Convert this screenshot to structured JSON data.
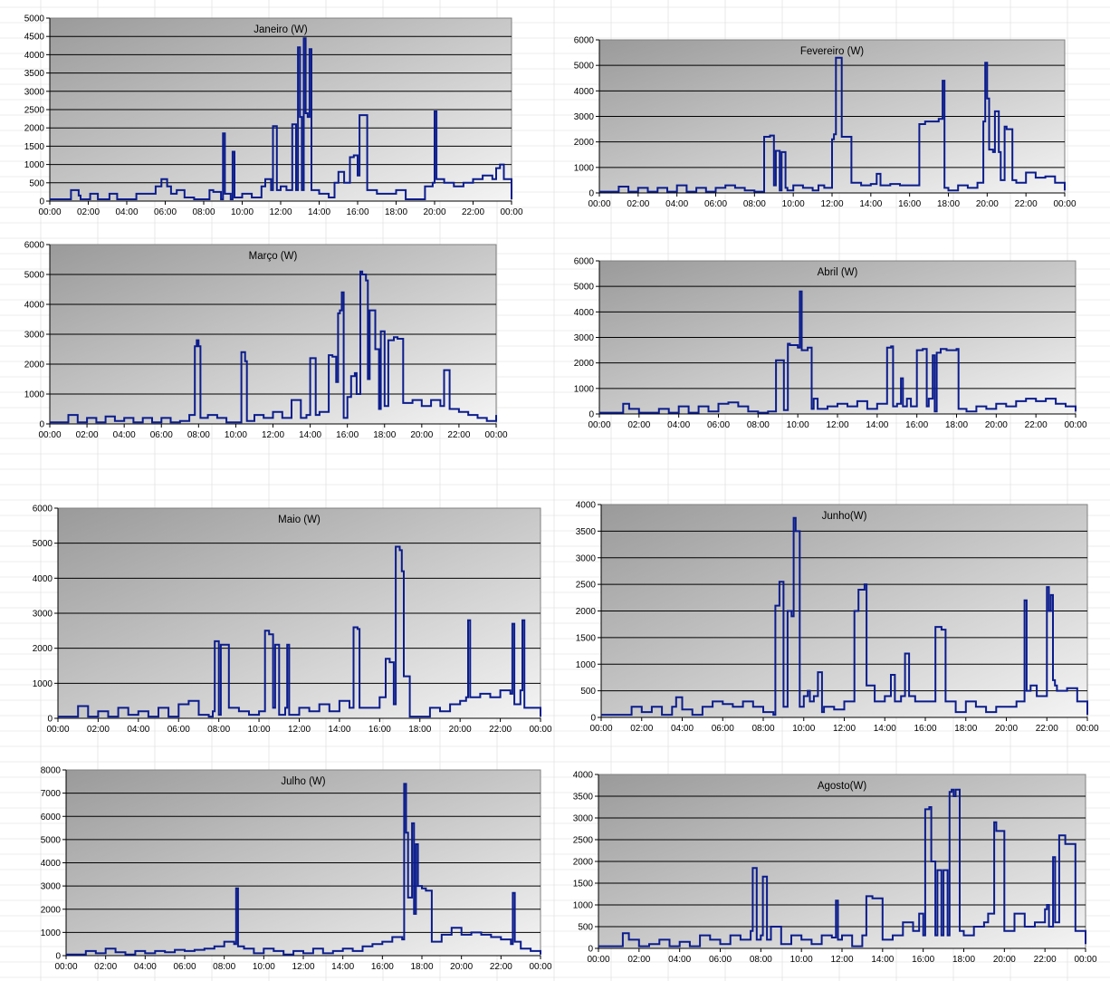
{
  "x_ticks": [
    "00:00",
    "02:00",
    "04:00",
    "06:00",
    "08:00",
    "10:00",
    "12:00",
    "14:00",
    "16:00",
    "18:00",
    "20:00",
    "22:00",
    "00:00"
  ],
  "colors": {
    "line": "#0b1c8c",
    "plot_top": "#9a9a9a",
    "plot_bottom": "#f4f4f4",
    "grid": "#000000",
    "sheet_grid": "#dcdcdc"
  },
  "chart_data": [
    {
      "type": "line",
      "title": "Janeiro (W)",
      "xlim": [
        0,
        24
      ],
      "ylim": [
        0,
        5000
      ],
      "y_ticks": [
        0,
        500,
        1000,
        1500,
        2000,
        2500,
        3000,
        3500,
        4000,
        4500,
        5000
      ],
      "grid": true,
      "x": [
        0,
        1,
        1.1,
        1.5,
        1.6,
        2,
        2.1,
        2.5,
        3,
        3.1,
        3.5,
        4,
        4.5,
        5,
        5.5,
        5.8,
        6.1,
        6.3,
        6.6,
        7,
        7.5,
        8,
        8.3,
        8.5,
        8.9,
        9,
        9.1,
        9.4,
        9.5,
        9.6,
        10,
        10.5,
        11,
        11.2,
        11.5,
        11.6,
        11.8,
        12,
        12.3,
        12.5,
        12.6,
        12.8,
        12.9,
        13,
        13.1,
        13.2,
        13.3,
        13.4,
        13.5,
        13.6,
        14,
        14.5,
        14.8,
        15,
        15.3,
        15.6,
        15.8,
        16,
        16.1,
        16.5,
        17,
        17.5,
        18,
        18.5,
        19,
        19.5,
        19.9,
        20,
        20.1,
        20.5,
        21,
        21.5,
        22,
        22.5,
        23,
        23.2,
        23.4,
        23.6,
        24
      ],
      "values": [
        50,
        50,
        300,
        150,
        50,
        50,
        200,
        50,
        50,
        200,
        50,
        50,
        200,
        200,
        400,
        600,
        400,
        200,
        300,
        100,
        50,
        50,
        300,
        250,
        50,
        1850,
        200,
        50,
        1350,
        100,
        200,
        100,
        400,
        600,
        300,
        2050,
        300,
        400,
        300,
        300,
        2100,
        300,
        4200,
        2300,
        300,
        4450,
        2400,
        2300,
        4150,
        300,
        200,
        100,
        500,
        800,
        500,
        1200,
        1250,
        700,
        2350,
        300,
        200,
        200,
        300,
        50,
        50,
        400,
        500,
        2450,
        600,
        500,
        400,
        500,
        600,
        700,
        600,
        900,
        1000,
        600,
        50
      ]
    },
    {
      "type": "line",
      "title": "Fevereiro (W)",
      "xlim": [
        0,
        24
      ],
      "ylim": [
        0,
        6000
      ],
      "y_ticks": [
        0,
        1000,
        2000,
        3000,
        4000,
        5000,
        6000
      ],
      "grid": true,
      "x": [
        0,
        1,
        1.5,
        2,
        2.5,
        3,
        3.5,
        4,
        4.5,
        5,
        5.5,
        6,
        6.5,
        7,
        7.5,
        8,
        8.5,
        8.8,
        9,
        9.1,
        9.3,
        9.4,
        9.6,
        9.7,
        10,
        10.5,
        11,
        11.3,
        11.6,
        12,
        12.1,
        12.2,
        12.5,
        13,
        13.5,
        14,
        14.3,
        14.5,
        15,
        15.5,
        16,
        16.5,
        16.8,
        17.5,
        17.7,
        17.8,
        18,
        18.5,
        19,
        19.5,
        19.8,
        19.9,
        20,
        20.1,
        20.3,
        20.4,
        20.6,
        20.7,
        20.9,
        21,
        21.3,
        21.5,
        22,
        22.5,
        23,
        23.5,
        24
      ],
      "values": [
        50,
        250,
        50,
        200,
        50,
        200,
        50,
        300,
        50,
        200,
        50,
        200,
        300,
        200,
        100,
        50,
        2200,
        2250,
        300,
        1650,
        100,
        1600,
        200,
        100,
        300,
        200,
        100,
        300,
        200,
        2100,
        2300,
        5300,
        2200,
        400,
        300,
        350,
        750,
        300,
        350,
        300,
        300,
        2700,
        2800,
        2900,
        4400,
        200,
        100,
        300,
        200,
        400,
        2800,
        5100,
        3700,
        1700,
        1600,
        3200,
        1600,
        500,
        2600,
        2500,
        500,
        400,
        800,
        600,
        650,
        400,
        100
      ]
    },
    {
      "type": "line",
      "title": "Março (W)",
      "xlim": [
        0,
        24
      ],
      "ylim": [
        0,
        6000
      ],
      "y_ticks": [
        0,
        1000,
        2000,
        3000,
        4000,
        5000,
        6000
      ],
      "grid": true,
      "x": [
        0,
        1,
        1.5,
        2,
        2.5,
        3,
        3.5,
        4,
        4.5,
        5,
        5.5,
        6,
        6.5,
        7,
        7.5,
        7.8,
        7.9,
        8,
        8.1,
        8.5,
        9,
        9.5,
        10,
        10.3,
        10.5,
        10.6,
        11,
        11.5,
        12,
        12.5,
        13,
        13.5,
        13.8,
        14,
        14.3,
        14.5,
        15,
        15.2,
        15.4,
        15.5,
        15.6,
        15.7,
        15.8,
        16,
        16.2,
        16.4,
        16.5,
        16.7,
        16.8,
        17,
        17.1,
        17.2,
        17.5,
        17.7,
        17.8,
        18,
        18.2,
        18.5,
        18.7,
        19,
        19.5,
        20,
        20.5,
        21,
        21.2,
        21.5,
        22,
        22.5,
        23,
        23.5,
        24
      ],
      "values": [
        50,
        300,
        50,
        200,
        50,
        250,
        100,
        200,
        50,
        200,
        50,
        200,
        50,
        100,
        300,
        2600,
        2800,
        2600,
        200,
        300,
        200,
        50,
        50,
        2400,
        2100,
        100,
        300,
        200,
        400,
        200,
        800,
        200,
        300,
        2200,
        300,
        400,
        2300,
        2250,
        1400,
        3700,
        3800,
        4400,
        200,
        900,
        1600,
        1700,
        1000,
        5100,
        5000,
        4800,
        1500,
        3800,
        2500,
        500,
        3100,
        600,
        2800,
        2900,
        2850,
        700,
        800,
        600,
        800,
        600,
        1800,
        500,
        400,
        300,
        200,
        100,
        300
      ]
    },
    {
      "type": "line",
      "title": "Abril (W)",
      "xlim": [
        0,
        24
      ],
      "ylim": [
        0,
        6000
      ],
      "y_ticks": [
        0,
        1000,
        2000,
        3000,
        4000,
        5000,
        6000
      ],
      "grid": true,
      "x": [
        0,
        1,
        1.2,
        1.5,
        2,
        2.5,
        3,
        3.5,
        4,
        4.5,
        5,
        5.5,
        6,
        6.5,
        7,
        7.5,
        8,
        8.5,
        8.9,
        9,
        9.3,
        9.5,
        9.6,
        10,
        10.1,
        10.2,
        10.5,
        10.7,
        10.8,
        11,
        11.5,
        12,
        12.5,
        13,
        13.5,
        14,
        14.5,
        14.7,
        14.8,
        15,
        15.2,
        15.3,
        15.5,
        15.7,
        16,
        16.3,
        16.5,
        16.6,
        16.8,
        16.9,
        17,
        17.2,
        17.5,
        18,
        18.1,
        18.5,
        19,
        19.5,
        20,
        20.5,
        21,
        21.5,
        22,
        22.5,
        23,
        23.5,
        24
      ],
      "values": [
        50,
        50,
        400,
        200,
        50,
        50,
        200,
        50,
        300,
        50,
        300,
        100,
        400,
        450,
        300,
        100,
        50,
        100,
        2100,
        2100,
        150,
        2750,
        2700,
        2600,
        4800,
        2500,
        2600,
        200,
        600,
        200,
        300,
        400,
        300,
        500,
        200,
        400,
        2600,
        2650,
        300,
        400,
        1400,
        300,
        600,
        300,
        2500,
        2550,
        300,
        600,
        2300,
        100,
        2400,
        2550,
        2500,
        2550,
        200,
        100,
        300,
        200,
        400,
        300,
        500,
        600,
        500,
        600,
        400,
        300,
        100
      ]
    },
    {
      "type": "line",
      "title": "Maio (W)",
      "xlim": [
        0,
        24
      ],
      "ylim": [
        0,
        6000
      ],
      "y_ticks": [
        0,
        1000,
        2000,
        3000,
        4000,
        5000,
        6000
      ],
      "grid": true,
      "x": [
        0,
        1,
        1.5,
        2,
        2.5,
        3,
        3.5,
        4,
        4.5,
        5,
        5.5,
        6,
        6.5,
        7,
        7.5,
        7.7,
        7.8,
        8,
        8.1,
        8.5,
        9,
        9.5,
        10,
        10.3,
        10.5,
        10.7,
        10.8,
        11,
        11.3,
        11.4,
        11.5,
        12,
        12.5,
        13,
        13.5,
        14,
        14.5,
        14.7,
        14.9,
        15,
        15.5,
        16,
        16.3,
        16.5,
        16.7,
        16.8,
        17,
        17.1,
        17.2,
        17.5,
        18,
        18.5,
        19,
        19.5,
        20,
        20.3,
        20.4,
        20.5,
        21,
        21.5,
        22,
        22.5,
        22.6,
        22.7,
        23,
        23.1,
        23.2,
        24
      ],
      "values": [
        50,
        350,
        50,
        200,
        50,
        300,
        100,
        200,
        50,
        300,
        50,
        400,
        500,
        100,
        50,
        200,
        2200,
        100,
        2100,
        300,
        200,
        100,
        200,
        2500,
        2400,
        300,
        2100,
        100,
        300,
        2100,
        100,
        300,
        200,
        400,
        200,
        500,
        300,
        2600,
        2550,
        300,
        300,
        600,
        1700,
        1600,
        400,
        4900,
        4800,
        4200,
        1200,
        50,
        50,
        300,
        200,
        400,
        500,
        600,
        2800,
        600,
        700,
        600,
        800,
        700,
        2700,
        400,
        800,
        2800,
        300,
        50
      ]
    },
    {
      "type": "line",
      "title": "Junho(W)",
      "xlim": [
        0,
        24
      ],
      "ylim": [
        0,
        4000
      ],
      "y_ticks": [
        0,
        500,
        1000,
        1500,
        2000,
        2500,
        3000,
        3500,
        4000
      ],
      "grid": true,
      "x": [
        0,
        1,
        1.5,
        2,
        2.5,
        3,
        3.5,
        3.7,
        4,
        4.5,
        5,
        5.5,
        6,
        6.5,
        7,
        7.5,
        8,
        8.5,
        8.6,
        8.8,
        9,
        9.2,
        9.4,
        9.5,
        9.6,
        9.8,
        10,
        10.2,
        10.3,
        10.5,
        10.7,
        10.9,
        11,
        11.5,
        12,
        12.5,
        12.7,
        13,
        13.1,
        13.5,
        14,
        14.3,
        14.5,
        14.8,
        15,
        15.2,
        15.5,
        16,
        16.5,
        16.7,
        16.8,
        17,
        17.5,
        18,
        18.5,
        19,
        19.5,
        20,
        20.5,
        20.9,
        21,
        21.2,
        21.5,
        22,
        22.1,
        22.2,
        22.3,
        22.4,
        22.5,
        23,
        23.5,
        24
      ],
      "values": [
        50,
        50,
        200,
        100,
        200,
        50,
        200,
        380,
        150,
        50,
        200,
        300,
        250,
        200,
        300,
        200,
        100,
        50,
        2100,
        2550,
        200,
        2000,
        1900,
        3750,
        3500,
        200,
        400,
        500,
        300,
        400,
        850,
        100,
        200,
        150,
        300,
        2000,
        2400,
        2500,
        600,
        300,
        400,
        800,
        300,
        400,
        1200,
        400,
        300,
        300,
        1700,
        1700,
        1650,
        300,
        100,
        300,
        200,
        100,
        200,
        200,
        300,
        2200,
        500,
        600,
        400,
        2450,
        2000,
        2300,
        700,
        600,
        500,
        550,
        300,
        50
      ]
    },
    {
      "type": "line",
      "title": "Julho (W)",
      "xlim": [
        0,
        24
      ],
      "ylim": [
        0,
        8000
      ],
      "y_ticks": [
        0,
        1000,
        2000,
        3000,
        4000,
        5000,
        6000,
        7000,
        8000
      ],
      "grid": true,
      "x": [
        0,
        1,
        1.5,
        2,
        2.5,
        3,
        3.5,
        4,
        4.5,
        5,
        5.5,
        6,
        6.5,
        7,
        7.5,
        8,
        8.5,
        8.6,
        8.7,
        9,
        9.5,
        10,
        10.5,
        11,
        11.5,
        12,
        12.5,
        13,
        13.5,
        14,
        14.5,
        15,
        15.5,
        16,
        16.5,
        17,
        17.1,
        17.2,
        17.3,
        17.5,
        17.6,
        17.7,
        17.8,
        18,
        18.2,
        18.5,
        19,
        19.5,
        20,
        20.5,
        21,
        21.5,
        22,
        22.5,
        22.6,
        22.7,
        23,
        23.5,
        24
      ],
      "values": [
        50,
        200,
        100,
        300,
        150,
        50,
        200,
        100,
        200,
        150,
        250,
        200,
        250,
        300,
        400,
        600,
        500,
        2900,
        400,
        300,
        100,
        300,
        200,
        50,
        200,
        100,
        300,
        100,
        200,
        300,
        200,
        400,
        500,
        600,
        800,
        700,
        7400,
        5300,
        2500,
        5700,
        1800,
        4800,
        3000,
        2900,
        2800,
        600,
        900,
        1200,
        900,
        1000,
        900,
        800,
        700,
        500,
        2700,
        600,
        300,
        200,
        50
      ]
    },
    {
      "type": "line",
      "title": "Agosto(W)",
      "xlim": [
        0,
        24
      ],
      "ylim": [
        0,
        4000
      ],
      "y_ticks": [
        0,
        500,
        1000,
        1500,
        2000,
        2500,
        3000,
        3500,
        4000
      ],
      "grid": true,
      "x": [
        0,
        1,
        1.2,
        1.5,
        2,
        2.5,
        3,
        3.5,
        4,
        4.5,
        5,
        5.5,
        6,
        6.5,
        7,
        7.5,
        7.6,
        7.8,
        8,
        8.1,
        8.3,
        8.5,
        9,
        9.5,
        10,
        10.5,
        11,
        11.5,
        11.7,
        11.8,
        12,
        12.5,
        13,
        13.2,
        13.5,
        14,
        14.5,
        15,
        15.5,
        15.8,
        16,
        16.1,
        16.3,
        16.4,
        16.6,
        16.7,
        16.9,
        17,
        17.2,
        17.3,
        17.4,
        17.5,
        17.6,
        17.8,
        18,
        18.5,
        19,
        19.2,
        19.5,
        19.6,
        19.8,
        20,
        20.5,
        21,
        21.5,
        22,
        22.1,
        22.2,
        22.4,
        22.5,
        22.7,
        23,
        23.5,
        24
      ],
      "values": [
        50,
        50,
        350,
        200,
        50,
        100,
        200,
        50,
        150,
        50,
        300,
        200,
        100,
        300,
        200,
        400,
        1850,
        200,
        300,
        1650,
        200,
        500,
        100,
        300,
        200,
        100,
        300,
        250,
        1100,
        200,
        300,
        50,
        300,
        1200,
        1150,
        200,
        300,
        600,
        400,
        800,
        300,
        3200,
        3250,
        2000,
        300,
        1800,
        300,
        1800,
        300,
        3600,
        3650,
        3500,
        3650,
        400,
        300,
        500,
        600,
        800,
        2900,
        2700,
        2700,
        400,
        800,
        500,
        600,
        900,
        1000,
        500,
        2100,
        600,
        2600,
        2400,
        400,
        100
      ]
    }
  ]
}
